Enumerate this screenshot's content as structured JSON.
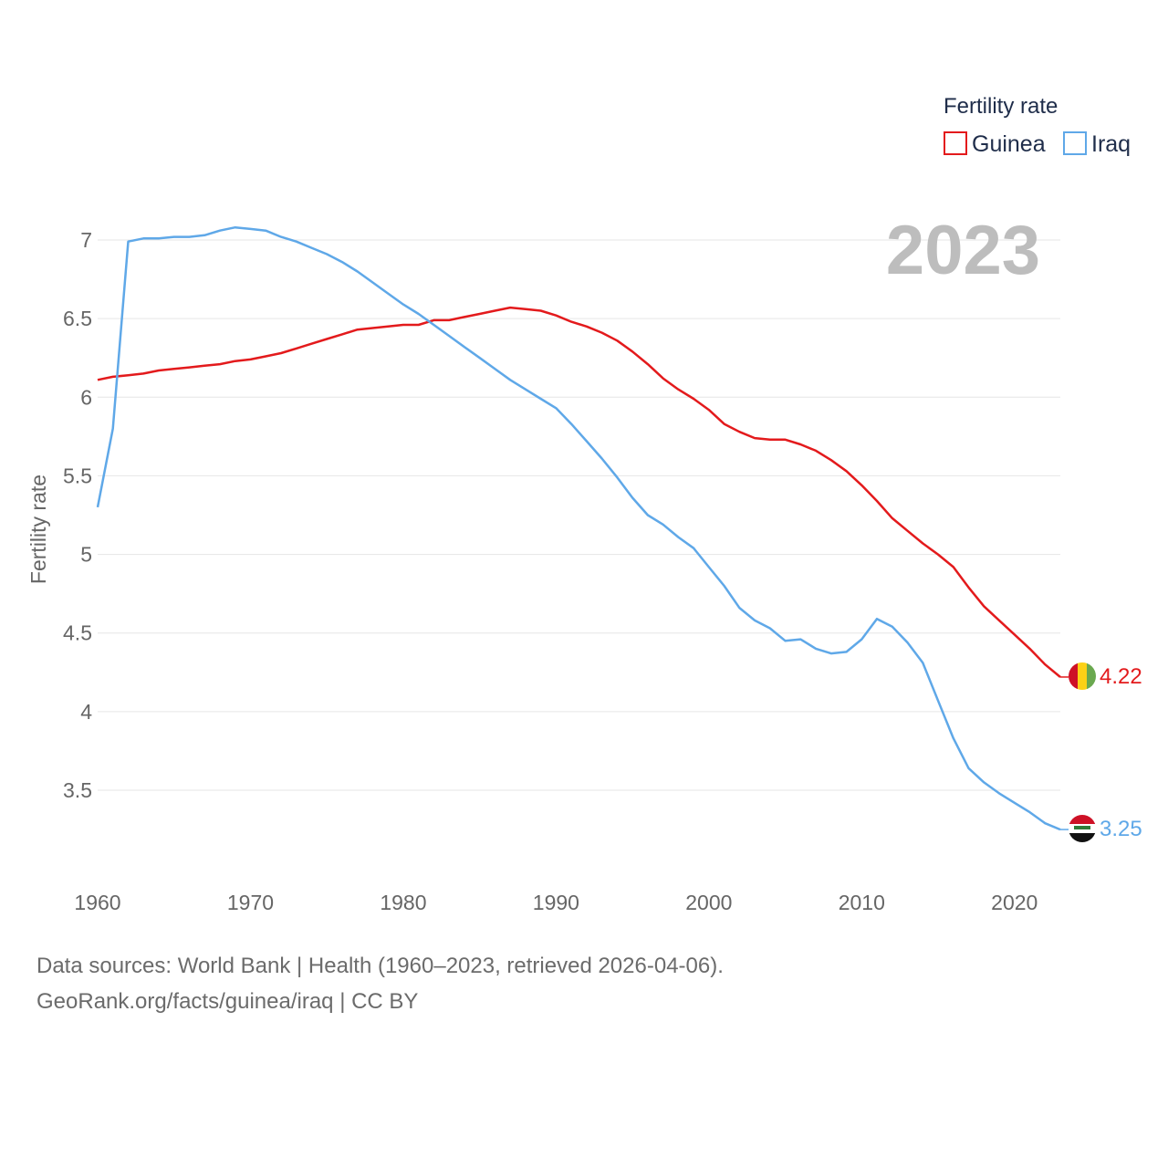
{
  "legend": {
    "title": "Fertility rate",
    "items": [
      {
        "label": "Guinea",
        "color": "#e31a1c"
      },
      {
        "label": "Iraq",
        "color": "#5fa8e8"
      }
    ]
  },
  "year_label": "2023",
  "chart_data": {
    "type": "line",
    "title": "",
    "xlabel": "",
    "ylabel": "Fertility rate",
    "xlim": [
      1960,
      2023
    ],
    "ylim": [
      3.0,
      7.1
    ],
    "x_ticks": [
      1960,
      1970,
      1980,
      1990,
      2000,
      2010,
      2020
    ],
    "y_ticks": [
      3.5,
      4,
      4.5,
      5,
      5.5,
      6,
      6.5,
      7
    ],
    "y_tick_labels": [
      "3.5",
      "4",
      "4.5",
      "5",
      "5.5",
      "6",
      "6.5",
      "7"
    ],
    "x": [
      1960,
      1961,
      1962,
      1963,
      1964,
      1965,
      1966,
      1967,
      1968,
      1969,
      1970,
      1971,
      1972,
      1973,
      1974,
      1975,
      1976,
      1977,
      1978,
      1979,
      1980,
      1981,
      1982,
      1983,
      1984,
      1985,
      1986,
      1987,
      1988,
      1989,
      1990,
      1991,
      1992,
      1993,
      1994,
      1995,
      1996,
      1997,
      1998,
      1999,
      2000,
      2001,
      2002,
      2003,
      2004,
      2005,
      2006,
      2007,
      2008,
      2009,
      2010,
      2011,
      2012,
      2013,
      2014,
      2015,
      2016,
      2017,
      2018,
      2019,
      2020,
      2021,
      2022,
      2023
    ],
    "series": [
      {
        "name": "Guinea",
        "color": "#e31a1c",
        "end_label": "4.22",
        "values": [
          6.11,
          6.13,
          6.14,
          6.15,
          6.17,
          6.18,
          6.19,
          6.2,
          6.21,
          6.23,
          6.24,
          6.26,
          6.28,
          6.31,
          6.34,
          6.37,
          6.4,
          6.43,
          6.44,
          6.45,
          6.46,
          6.46,
          6.49,
          6.49,
          6.51,
          6.53,
          6.55,
          6.57,
          6.56,
          6.55,
          6.52,
          6.48,
          6.45,
          6.41,
          6.36,
          6.29,
          6.21,
          6.12,
          6.05,
          5.99,
          5.92,
          5.83,
          5.78,
          5.74,
          5.73,
          5.73,
          5.7,
          5.66,
          5.6,
          5.53,
          5.44,
          5.34,
          5.23,
          5.15,
          5.07,
          5.0,
          4.92,
          4.79,
          4.67,
          4.58,
          4.49,
          4.4,
          4.3,
          4.22
        ]
      },
      {
        "name": "Iraq",
        "color": "#5fa8e8",
        "end_label": "3.25",
        "values": [
          5.3,
          5.8,
          6.99,
          7.01,
          7.01,
          7.02,
          7.02,
          7.03,
          7.06,
          7.08,
          7.07,
          7.06,
          7.02,
          6.99,
          6.95,
          6.91,
          6.86,
          6.8,
          6.73,
          6.66,
          6.59,
          6.53,
          6.46,
          6.39,
          6.32,
          6.25,
          6.18,
          6.11,
          6.05,
          5.99,
          5.93,
          5.83,
          5.72,
          5.61,
          5.49,
          5.36,
          5.25,
          5.19,
          5.11,
          5.04,
          4.92,
          4.8,
          4.66,
          4.58,
          4.53,
          4.45,
          4.46,
          4.4,
          4.37,
          4.38,
          4.46,
          4.59,
          4.54,
          4.44,
          4.31,
          4.07,
          3.83,
          3.64,
          3.55,
          3.48,
          3.42,
          3.36,
          3.29,
          3.25
        ]
      }
    ]
  },
  "footer": {
    "sources": "Data sources: World Bank | Health (1960–2023, retrieved 2026-04-06).",
    "license": "GeoRank.org/facts/guinea/iraq | CC BY"
  }
}
